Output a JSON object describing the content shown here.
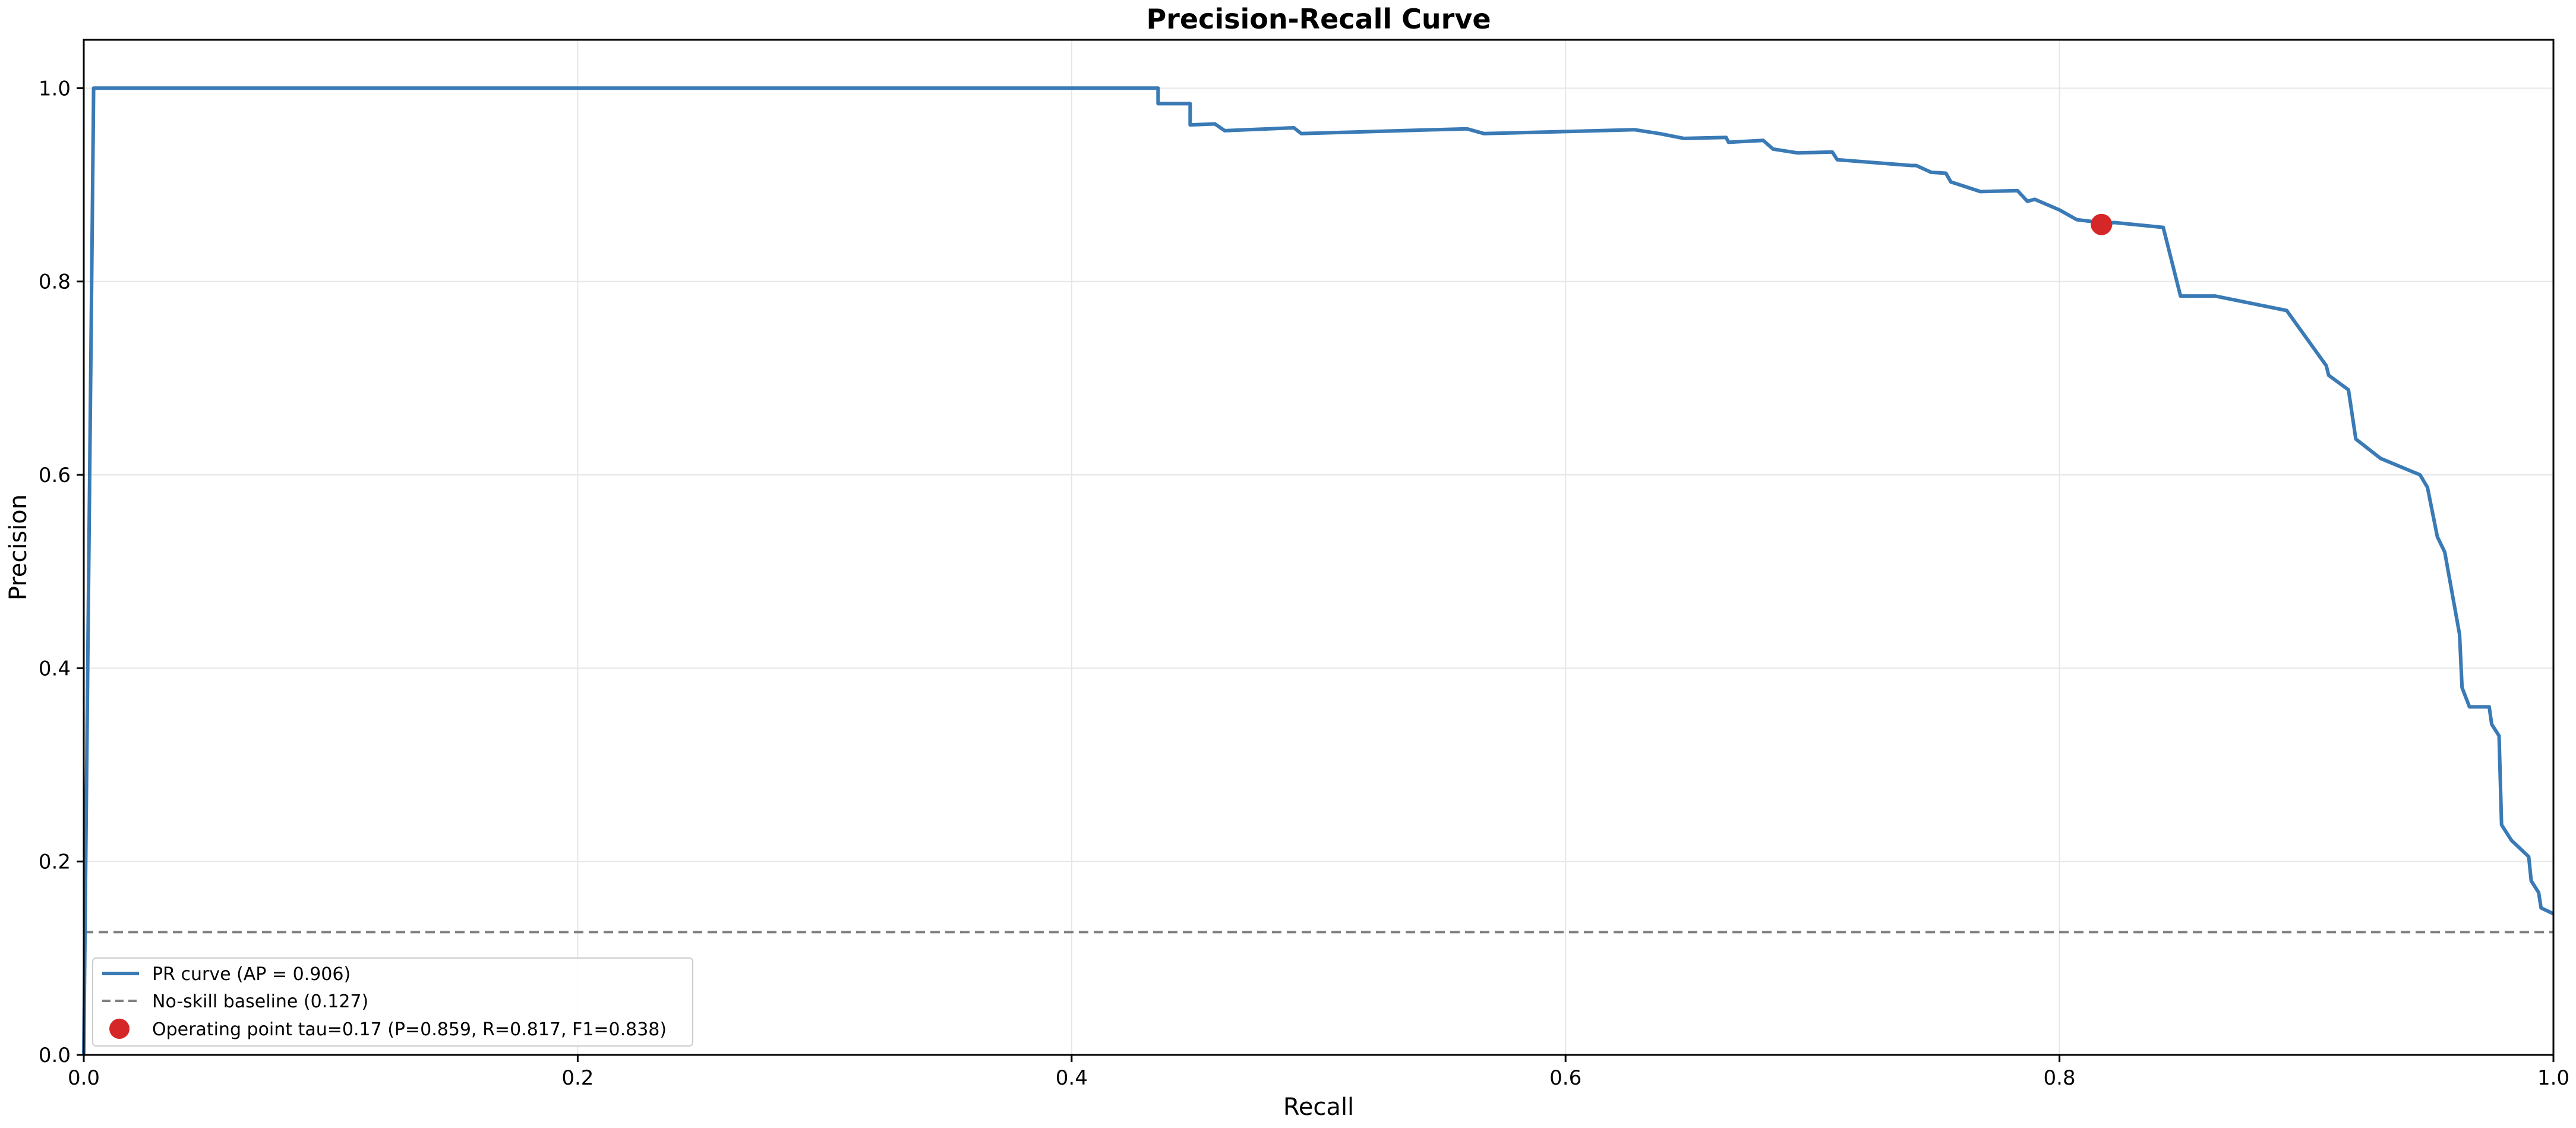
{
  "chart_data": {
    "type": "line",
    "title": "Precision-Recall Curve",
    "xlabel": "Recall",
    "ylabel": "Precision",
    "xlim": [
      0,
      1
    ],
    "ylim": [
      0,
      1.05
    ],
    "x_ticks": [
      0.0,
      0.2,
      0.4,
      0.6,
      0.8,
      1.0
    ],
    "y_ticks": [
      0.0,
      0.2,
      0.4,
      0.6,
      0.8,
      1.0
    ],
    "x_tick_labels": [
      "0.0",
      "0.2",
      "0.4",
      "0.6",
      "0.8",
      "1.0"
    ],
    "y_tick_labels": [
      "0.0",
      "0.2",
      "0.4",
      "0.6",
      "0.8",
      "1.0"
    ],
    "grid": true,
    "legend_position": "lower-left",
    "colors": {
      "curve": "#3a7ab5",
      "baseline": "#808080",
      "operating_point": "#d62728",
      "grid": "#e6e6e6",
      "axes": "#000000"
    },
    "series": [
      {
        "kind": "curve",
        "name": "PR curve  (AP = 0.906)",
        "x": [
          0.0,
          0.004,
          0.004,
          0.435,
          0.435,
          0.448,
          0.448,
          0.458,
          0.462,
          0.49,
          0.493,
          0.56,
          0.567,
          0.628,
          0.638,
          0.648,
          0.665,
          0.666,
          0.68,
          0.684,
          0.694,
          0.708,
          0.71,
          0.74,
          0.742,
          0.748,
          0.754,
          0.756,
          0.768,
          0.783,
          0.787,
          0.79,
          0.8,
          0.807,
          0.82,
          0.822,
          0.842,
          0.849,
          0.863,
          0.892,
          0.908,
          0.909,
          0.917,
          0.92,
          0.93,
          0.946,
          0.949,
          0.953,
          0.956,
          0.962,
          0.963,
          0.966,
          0.974,
          0.975,
          0.978,
          0.979,
          0.983,
          0.99,
          0.991,
          0.994,
          0.995,
          1.0
        ],
        "y": [
          0.0,
          1.0,
          1.0,
          1.0,
          0.984,
          0.984,
          0.962,
          0.963,
          0.956,
          0.959,
          0.953,
          0.958,
          0.953,
          0.957,
          0.953,
          0.948,
          0.949,
          0.944,
          0.946,
          0.937,
          0.933,
          0.934,
          0.926,
          0.92,
          0.92,
          0.913,
          0.912,
          0.903,
          0.893,
          0.894,
          0.883,
          0.885,
          0.874,
          0.864,
          0.86,
          0.861,
          0.856,
          0.785,
          0.785,
          0.77,
          0.713,
          0.703,
          0.688,
          0.637,
          0.617,
          0.6,
          0.587,
          0.536,
          0.52,
          0.435,
          0.38,
          0.36,
          0.36,
          0.342,
          0.33,
          0.238,
          0.222,
          0.205,
          0.18,
          0.168,
          0.152,
          0.146
        ]
      },
      {
        "kind": "baseline",
        "name": "No-skill baseline  (0.127)",
        "y": 0.127
      },
      {
        "kind": "point",
        "name": "Operating point  tau=0.17  (P=0.859, R=0.817, F1=0.838)",
        "x": 0.817,
        "y": 0.859
      }
    ]
  }
}
